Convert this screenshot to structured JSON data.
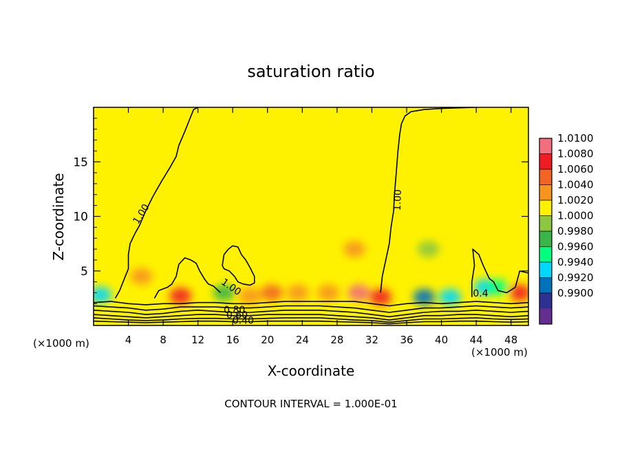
{
  "chart_data": {
    "type": "heatmap",
    "title": "saturation ratio",
    "xlabel": "X-coordinate",
    "ylabel": "Z-coordinate",
    "x_unit": "(×1000 m)",
    "x_unit_right": "(×1000 m)",
    "xlim": [
      0,
      50
    ],
    "ylim": [
      0,
      20
    ],
    "x_ticks": [
      4,
      8,
      12,
      16,
      20,
      24,
      28,
      32,
      36,
      40,
      44,
      48
    ],
    "x_tick_labels": [
      "4",
      "8",
      "12",
      "16",
      "20",
      "24",
      "28",
      "32",
      "36",
      "40",
      "44",
      "48"
    ],
    "y_ticks": [
      5,
      10,
      15
    ],
    "y_tick_labels": [
      "5",
      "10",
      "15"
    ],
    "footer": "CONTOUR INTERVAL = 1.000E-01",
    "colorbar": {
      "min": 0.99,
      "max": 1.01,
      "levels": [
        {
          "value": 1.008,
          "label": "1.0100",
          "color": "#f26d7d"
        },
        {
          "value": 1.006,
          "label": "1.0080",
          "color": "#ef1c24"
        },
        {
          "value": 1.004,
          "label": "1.0060",
          "color": "#f26522"
        },
        {
          "value": 1.002,
          "label": "1.0040",
          "color": "#f7941d"
        },
        {
          "value": 1.0,
          "label": "1.0020",
          "color": "#fff200"
        },
        {
          "value": 0.998,
          "label": "1.0000",
          "color": "#8dc63f"
        },
        {
          "value": 0.996,
          "label": "0.9980",
          "color": "#39b54a"
        },
        {
          "value": 0.994,
          "label": "0.9960",
          "color": "#00ff7f"
        },
        {
          "value": 0.992,
          "label": "0.9940",
          "color": "#00d8ff"
        },
        {
          "value": 0.99,
          "label": "0.9920",
          "color": "#0072bc"
        },
        {
          "value": 0.988,
          "label": "0.9900",
          "color": "#2e3192"
        }
      ],
      "bottom_color": "#662d91"
    },
    "background_value": 1.0005,
    "features": [
      {
        "kind": "max",
        "x": 10.0,
        "z": 2.7,
        "value": 1.0075
      },
      {
        "kind": "max",
        "x": 5.5,
        "z": 4.5,
        "value": 1.003
      },
      {
        "kind": "max",
        "x": 14.0,
        "z": 5.5,
        "value": 1.001
      },
      {
        "kind": "max",
        "x": 18.0,
        "z": 2.7,
        "value": 1.003
      },
      {
        "kind": "max",
        "x": 20.5,
        "z": 3.0,
        "value": 1.004
      },
      {
        "kind": "max",
        "x": 23.5,
        "z": 3.0,
        "value": 1.003
      },
      {
        "kind": "max",
        "x": 24.0,
        "z": 5.5,
        "value": 1.0015
      },
      {
        "kind": "max",
        "x": 27.0,
        "z": 3.0,
        "value": 1.0035
      },
      {
        "kind": "max",
        "x": 30.5,
        "z": 3.0,
        "value": 1.008
      },
      {
        "kind": "max",
        "x": 30.0,
        "z": 7.0,
        "value": 1.0025
      },
      {
        "kind": "max",
        "x": 33.0,
        "z": 2.6,
        "value": 1.006
      },
      {
        "kind": "max",
        "x": 49.0,
        "z": 3.0,
        "value": 1.007
      },
      {
        "kind": "min",
        "x": 0.8,
        "z": 2.8,
        "value": 0.993
      },
      {
        "kind": "min",
        "x": 15.0,
        "z": 3.0,
        "value": 0.9965
      },
      {
        "kind": "min",
        "x": 38.0,
        "z": 2.6,
        "value": 0.9905
      },
      {
        "kind": "min",
        "x": 41.0,
        "z": 2.6,
        "value": 0.993
      },
      {
        "kind": "min",
        "x": 38.5,
        "z": 7.0,
        "value": 0.9985
      },
      {
        "kind": "min",
        "x": 45.0,
        "z": 3.5,
        "value": 0.9935
      },
      {
        "kind": "min",
        "x": 46.5,
        "z": 3.5,
        "value": 0.9945
      }
    ],
    "contour_labels": [
      {
        "text": "1.00",
        "x": 5.5,
        "z": 10.2,
        "angle": -58
      },
      {
        "text": "1.00",
        "x": 35.0,
        "z": 11.5,
        "angle": -88
      },
      {
        "text": "1.00",
        "x": 15.8,
        "z": 3.5,
        "angle": 35
      },
      {
        "text": "0.80",
        "x": 16.2,
        "z": 1.4,
        "angle": 0
      },
      {
        "text": "0.60",
        "x": 16.5,
        "z": 0.9,
        "angle": 0
      },
      {
        "text": "0.40",
        "x": 17.2,
        "z": 0.4,
        "angle": 0
      },
      {
        "text": "0.4",
        "x": 44.5,
        "z": 2.9,
        "angle": 0
      }
    ],
    "contours": [
      {
        "name": "1.00 left",
        "value": 1.0,
        "points": [
          [
            2.5,
            2.5
          ],
          [
            3.0,
            3.2
          ],
          [
            3.5,
            4.2
          ],
          [
            4.0,
            5.2
          ],
          [
            4.0,
            6.5
          ],
          [
            4.2,
            7.5
          ],
          [
            4.8,
            8.5
          ],
          [
            5.3,
            9.2
          ],
          [
            6.0,
            10.5
          ],
          [
            6.8,
            11.8
          ],
          [
            7.8,
            13.2
          ],
          [
            8.8,
            14.5
          ],
          [
            9.5,
            15.5
          ],
          [
            9.8,
            16.5
          ],
          [
            10.5,
            17.8
          ],
          [
            11.0,
            18.8
          ],
          [
            11.5,
            19.8
          ],
          [
            12.0,
            20.0
          ]
        ]
      },
      {
        "name": "1.00 right",
        "value": 1.0,
        "points": [
          [
            33.0,
            3.0
          ],
          [
            33.2,
            4.5
          ],
          [
            33.6,
            6.0
          ],
          [
            34.0,
            7.5
          ],
          [
            34.2,
            9.0
          ],
          [
            34.5,
            10.5
          ],
          [
            34.6,
            12.0
          ],
          [
            34.8,
            14.0
          ],
          [
            35.0,
            16.0
          ],
          [
            35.2,
            17.5
          ],
          [
            35.4,
            18.5
          ],
          [
            35.8,
            19.2
          ],
          [
            36.5,
            19.6
          ],
          [
            38.0,
            19.8
          ],
          [
            40.0,
            19.9
          ],
          [
            44.0,
            20.0
          ]
        ]
      },
      {
        "name": "1.00 closed",
        "value": 1.0,
        "closed": true,
        "points": [
          [
            14.8,
            5.5
          ],
          [
            15.0,
            6.5
          ],
          [
            15.5,
            7.0
          ],
          [
            16.0,
            7.3
          ],
          [
            16.6,
            7.2
          ],
          [
            17.0,
            6.5
          ],
          [
            17.5,
            6.0
          ],
          [
            18.0,
            5.3
          ],
          [
            18.5,
            4.5
          ],
          [
            18.5,
            3.9
          ],
          [
            18.0,
            3.7
          ],
          [
            17.2,
            3.8
          ],
          [
            16.6,
            4.0
          ],
          [
            16.2,
            4.5
          ],
          [
            15.6,
            5.0
          ],
          [
            15.0,
            5.2
          ]
        ]
      },
      {
        "name": "1.00 lower loop",
        "value": 1.0,
        "points": [
          [
            7.0,
            2.5
          ],
          [
            7.5,
            3.2
          ],
          [
            8.5,
            3.5
          ],
          [
            9.0,
            3.8
          ],
          [
            9.5,
            4.5
          ],
          [
            9.8,
            5.6
          ],
          [
            10.5,
            6.2
          ],
          [
            11.2,
            6.0
          ],
          [
            11.8,
            5.7
          ],
          [
            12.2,
            5.0
          ],
          [
            12.8,
            4.2
          ],
          [
            13.2,
            3.8
          ],
          [
            13.8,
            3.6
          ],
          [
            14.2,
            3.3
          ],
          [
            14.6,
            3.0
          ]
        ]
      },
      {
        "name": "1.00 right edge",
        "value": 1.0,
        "points": [
          [
            43.5,
            2.6
          ],
          [
            43.5,
            4.0
          ],
          [
            43.8,
            5.5
          ],
          [
            43.6,
            7.0
          ],
          [
            44.3,
            6.5
          ],
          [
            44.8,
            5.5
          ],
          [
            45.5,
            4.3
          ],
          [
            46.0,
            4.0
          ],
          [
            46.5,
            3.2
          ],
          [
            47.5,
            3.0
          ],
          [
            48.5,
            3.5
          ],
          [
            49.0,
            5.0
          ],
          [
            50.0,
            4.8
          ]
        ]
      },
      {
        "name": "0.90",
        "value": 0.9,
        "points": [
          [
            0,
            2.1
          ],
          [
            2,
            2.2
          ],
          [
            4,
            2.0
          ],
          [
            6,
            1.9
          ],
          [
            8,
            2.0
          ],
          [
            10,
            2.0
          ],
          [
            12,
            2.1
          ],
          [
            14,
            2.1
          ],
          [
            16,
            2.0
          ],
          [
            18,
            2.0
          ],
          [
            20,
            2.1
          ],
          [
            22,
            2.2
          ],
          [
            24,
            2.2
          ],
          [
            26,
            2.2
          ],
          [
            28,
            2.2
          ],
          [
            30,
            2.2
          ],
          [
            32,
            2.0
          ],
          [
            34,
            1.8
          ],
          [
            36,
            2.0
          ],
          [
            38,
            2.1
          ],
          [
            40,
            2.0
          ],
          [
            42,
            2.1
          ],
          [
            44,
            2.2
          ],
          [
            46,
            2.1
          ],
          [
            48,
            2.0
          ],
          [
            50,
            2.1
          ]
        ]
      },
      {
        "name": "0.80",
        "value": 0.8,
        "points": [
          [
            0,
            1.8
          ],
          [
            2,
            1.7
          ],
          [
            4,
            1.6
          ],
          [
            6,
            1.4
          ],
          [
            8,
            1.5
          ],
          [
            10,
            1.7
          ],
          [
            12,
            1.7
          ],
          [
            14,
            1.7
          ],
          [
            16,
            1.6
          ],
          [
            18,
            1.6
          ],
          [
            20,
            1.7
          ],
          [
            22,
            1.8
          ],
          [
            24,
            1.8
          ],
          [
            26,
            1.8
          ],
          [
            28,
            1.7
          ],
          [
            30,
            1.6
          ],
          [
            32,
            1.4
          ],
          [
            34,
            1.2
          ],
          [
            36,
            1.4
          ],
          [
            38,
            1.6
          ],
          [
            40,
            1.6
          ],
          [
            42,
            1.7
          ],
          [
            44,
            1.8
          ],
          [
            46,
            1.7
          ],
          [
            48,
            1.6
          ],
          [
            50,
            1.7
          ]
        ]
      },
      {
        "name": "0.70",
        "value": 0.7,
        "points": [
          [
            0,
            1.4
          ],
          [
            2,
            1.3
          ],
          [
            4,
            1.2
          ],
          [
            6,
            1.0
          ],
          [
            8,
            1.1
          ],
          [
            10,
            1.3
          ],
          [
            12,
            1.4
          ],
          [
            14,
            1.3
          ],
          [
            16,
            1.2
          ],
          [
            18,
            1.2
          ],
          [
            20,
            1.3
          ],
          [
            22,
            1.4
          ],
          [
            24,
            1.4
          ],
          [
            26,
            1.4
          ],
          [
            28,
            1.3
          ],
          [
            30,
            1.2
          ],
          [
            32,
            1.0
          ],
          [
            34,
            0.8
          ],
          [
            36,
            1.0
          ],
          [
            38,
            1.2
          ],
          [
            40,
            1.3
          ],
          [
            42,
            1.3
          ],
          [
            44,
            1.4
          ],
          [
            46,
            1.3
          ],
          [
            48,
            1.2
          ],
          [
            50,
            1.3
          ]
        ]
      },
      {
        "name": "0.60",
        "value": 0.6,
        "points": [
          [
            0,
            1.0
          ],
          [
            2,
            0.9
          ],
          [
            4,
            0.8
          ],
          [
            6,
            0.7
          ],
          [
            8,
            0.8
          ],
          [
            10,
            0.9
          ],
          [
            12,
            1.0
          ],
          [
            14,
            1.0
          ],
          [
            16,
            0.9
          ],
          [
            18,
            0.9
          ],
          [
            20,
            1.0
          ],
          [
            22,
            1.0
          ],
          [
            24,
            1.0
          ],
          [
            26,
            1.0
          ],
          [
            28,
            0.9
          ],
          [
            30,
            0.8
          ],
          [
            32,
            0.7
          ],
          [
            34,
            0.5
          ],
          [
            36,
            0.7
          ],
          [
            38,
            0.9
          ],
          [
            40,
            0.9
          ],
          [
            42,
            1.0
          ],
          [
            44,
            1.0
          ],
          [
            46,
            0.9
          ],
          [
            48,
            0.8
          ],
          [
            50,
            0.9
          ]
        ]
      },
      {
        "name": "0.50",
        "value": 0.5,
        "points": [
          [
            0,
            0.7
          ],
          [
            2,
            0.6
          ],
          [
            4,
            0.5
          ],
          [
            6,
            0.45
          ],
          [
            8,
            0.5
          ],
          [
            10,
            0.6
          ],
          [
            12,
            0.65
          ],
          [
            14,
            0.65
          ],
          [
            16,
            0.6
          ],
          [
            18,
            0.6
          ],
          [
            20,
            0.65
          ],
          [
            22,
            0.7
          ],
          [
            24,
            0.7
          ],
          [
            26,
            0.7
          ],
          [
            28,
            0.6
          ],
          [
            30,
            0.5
          ],
          [
            32,
            0.45
          ],
          [
            34,
            0.3
          ],
          [
            36,
            0.45
          ],
          [
            38,
            0.6
          ],
          [
            40,
            0.6
          ],
          [
            42,
            0.65
          ],
          [
            44,
            0.7
          ],
          [
            46,
            0.6
          ],
          [
            48,
            0.55
          ],
          [
            50,
            0.6
          ]
        ]
      },
      {
        "name": "0.40",
        "value": 0.4,
        "points": [
          [
            0,
            0.4
          ],
          [
            2,
            0.35
          ],
          [
            4,
            0.3
          ],
          [
            6,
            0.25
          ],
          [
            8,
            0.3
          ],
          [
            10,
            0.35
          ],
          [
            12,
            0.4
          ],
          [
            14,
            0.4
          ],
          [
            16,
            0.35
          ],
          [
            18,
            0.35
          ],
          [
            20,
            0.4
          ],
          [
            22,
            0.4
          ],
          [
            24,
            0.4
          ],
          [
            26,
            0.4
          ],
          [
            28,
            0.35
          ],
          [
            30,
            0.3
          ],
          [
            32,
            0.25
          ],
          [
            34,
            0.15
          ],
          [
            36,
            0.25
          ],
          [
            38,
            0.35
          ],
          [
            40,
            0.35
          ],
          [
            42,
            0.4
          ],
          [
            44,
            0.4
          ],
          [
            46,
            0.35
          ],
          [
            48,
            0.3
          ],
          [
            50,
            0.35
          ]
        ]
      }
    ]
  }
}
